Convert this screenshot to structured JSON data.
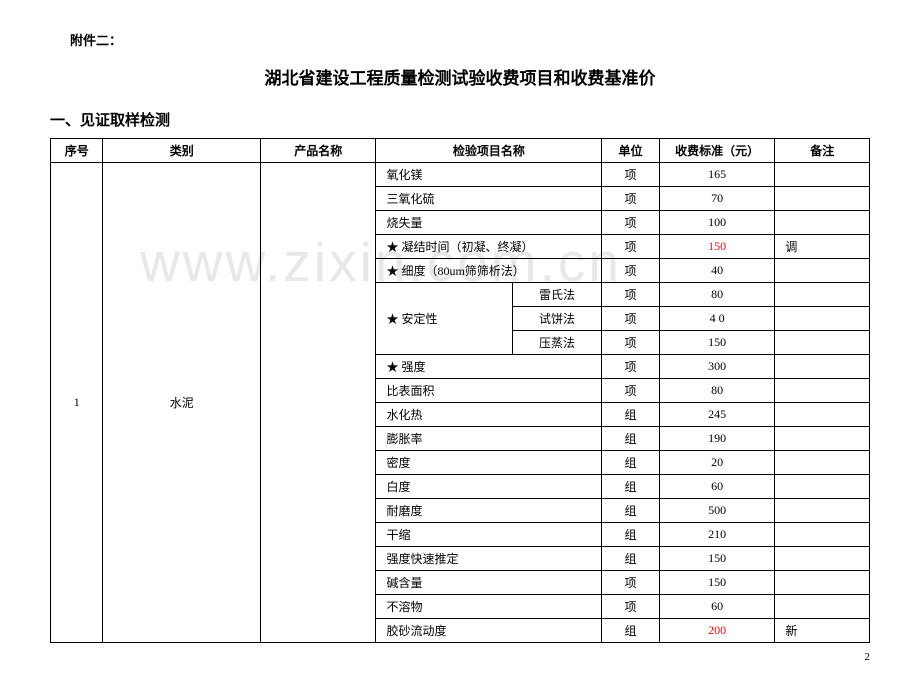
{
  "appendix": "附件二：",
  "main_title": "湖北省建设工程质量检测试验收费项目和收费基准价",
  "section_title": "一、见证取样检测",
  "watermark": "www.zixin.com.cn",
  "page_num": "2",
  "headers": {
    "seq": "序号",
    "category": "类别",
    "product": "产品名称",
    "item": "检验项目名称",
    "unit": "单位",
    "fee": "收费标准（元）",
    "note": "备注"
  },
  "seq_val": "1",
  "category_val": "水泥",
  "rows": [
    {
      "item": "氧化镁",
      "sub": "",
      "unit": "项",
      "fee": "165",
      "fee_red": false,
      "note": ""
    },
    {
      "item": "三氧化硫",
      "sub": "",
      "unit": "项",
      "fee": "70",
      "fee_red": false,
      "note": ""
    },
    {
      "item": "烧失量",
      "sub": "",
      "unit": "项",
      "fee": "100",
      "fee_red": false,
      "note": ""
    },
    {
      "item": "★ 凝结时间（初凝、终凝）",
      "sub": "",
      "unit": "项",
      "fee": "150",
      "fee_red": true,
      "note": "调"
    },
    {
      "item": "★ 细度（80um筛筛析法）",
      "sub": "",
      "unit": "项",
      "fee": "40",
      "fee_red": false,
      "note": ""
    },
    {
      "item": "★ 安定性",
      "sub": "雷氏法",
      "unit": "项",
      "fee": "80",
      "fee_red": false,
      "note": "",
      "group": "stability",
      "rowspan": 3
    },
    {
      "item": "",
      "sub": "试饼法",
      "unit": "项",
      "fee": "4 0",
      "fee_red": false,
      "note": "",
      "group": "stability"
    },
    {
      "item": "",
      "sub": "压蒸法",
      "unit": "项",
      "fee": "150",
      "fee_red": false,
      "note": "",
      "group": "stability"
    },
    {
      "item": "★ 强度",
      "sub": "",
      "unit": "项",
      "fee": "300",
      "fee_red": false,
      "note": ""
    },
    {
      "item": "比表面积",
      "sub": "",
      "unit": "项",
      "fee": "80",
      "fee_red": false,
      "note": ""
    },
    {
      "item": "水化热",
      "sub": "",
      "unit": "组",
      "fee": "245",
      "fee_red": false,
      "note": ""
    },
    {
      "item": "膨胀率",
      "sub": "",
      "unit": "组",
      "fee": "190",
      "fee_red": false,
      "note": ""
    },
    {
      "item": "密度",
      "sub": "",
      "unit": "组",
      "fee": "20",
      "fee_red": false,
      "note": ""
    },
    {
      "item": "白度",
      "sub": "",
      "unit": "组",
      "fee": "60",
      "fee_red": false,
      "note": ""
    },
    {
      "item": "耐磨度",
      "sub": "",
      "unit": "组",
      "fee": "500",
      "fee_red": false,
      "note": ""
    },
    {
      "item": "干缩",
      "sub": "",
      "unit": "组",
      "fee": "210",
      "fee_red": false,
      "note": ""
    },
    {
      "item": "强度快速推定",
      "sub": "",
      "unit": "组",
      "fee": "150",
      "fee_red": false,
      "note": ""
    },
    {
      "item": "碱含量",
      "sub": "",
      "unit": "项",
      "fee": "150",
      "fee_red": false,
      "note": ""
    },
    {
      "item": "不溶物",
      "sub": "",
      "unit": "项",
      "fee": "60",
      "fee_red": false,
      "note": ""
    },
    {
      "item": "胶砂流动度",
      "sub": "",
      "unit": "组",
      "fee": "200",
      "fee_red": true,
      "note": "新"
    }
  ]
}
